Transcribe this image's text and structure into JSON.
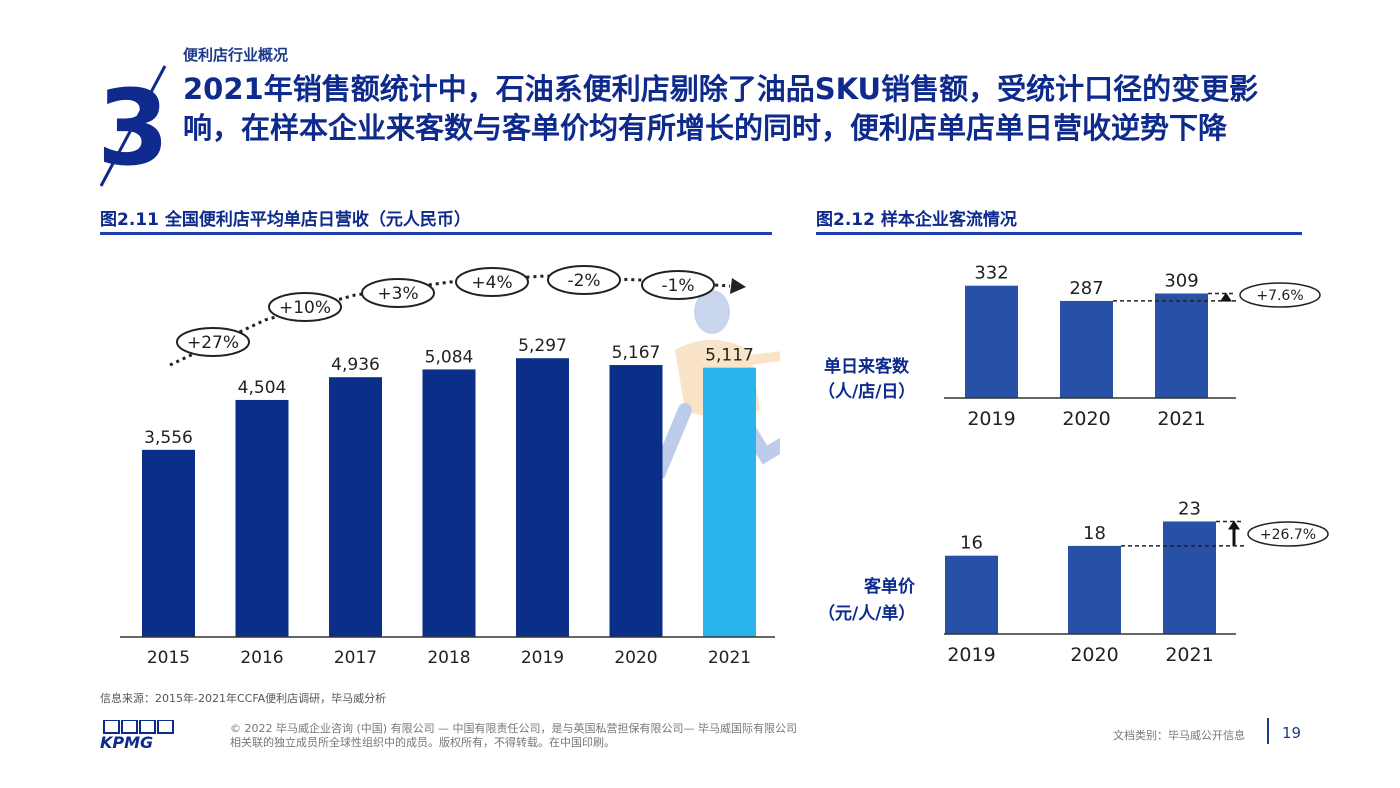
{
  "header": {
    "section_number": "3",
    "section_label": "便利店行业概况",
    "title": "2021年销售额统计中，石油系便利店剔除了油品SKU销售额，受统计口径的变更影响，在样本企业来客数与客单价均有所增长的同时，便利店单店单日营收逆势下降"
  },
  "colors": {
    "navy": "#0d2a8c",
    "bar_dark": "#0b2e88",
    "bar_highlight": "#2ab4ec",
    "bar_mid": "#2850a6",
    "rule": "#1e40af"
  },
  "chart_data": [
    {
      "id": "fig-2-11",
      "type": "bar",
      "title": "图2.11 全国便利店平均单店日营收（元人民币）",
      "categories": [
        "2015",
        "2016",
        "2017",
        "2018",
        "2019",
        "2020",
        "2021"
      ],
      "values": [
        3556,
        4504,
        4936,
        5084,
        5297,
        5167,
        5117
      ],
      "value_labels": [
        "3,556",
        "4,504",
        "4,936",
        "5,084",
        "5,297",
        "5,167",
        "5,117"
      ],
      "highlight_index": 6,
      "growth_labels": [
        "+27%",
        "+10%",
        "+3%",
        "+4%",
        "-2%",
        "-1%"
      ],
      "ylim": [
        0,
        5700
      ]
    },
    {
      "id": "fig-2-12-traffic",
      "type": "bar",
      "title": "图2.12 样本企业客流情况",
      "ylabel_lines": [
        "单日来客数",
        "（人/店/日）"
      ],
      "categories": [
        "2019",
        "2020",
        "2021"
      ],
      "values": [
        332,
        287,
        309
      ],
      "value_labels": [
        "332",
        "287",
        "309"
      ],
      "change_label": "+7.6%",
      "ylim": [
        0,
        340
      ]
    },
    {
      "id": "fig-2-12-ticket",
      "type": "bar",
      "ylabel_lines": [
        "客单价",
        "（元/人/单）"
      ],
      "categories": [
        "2019",
        "2020",
        "2021"
      ],
      "values": [
        16,
        18,
        23
      ],
      "value_labels": [
        "16",
        "18",
        "23"
      ],
      "change_label": "+26.7%",
      "ylim": [
        0,
        23.5
      ]
    }
  ],
  "footer": {
    "source": "信息来源：2015年-2021年CCFA便利店调研，毕马威分析",
    "copyright_line1": "© 2022 毕马威企业咨询 (中国) 有限公司 — 中国有限责任公司，是与英国私营担保有限公司— 毕马威国际有限公司",
    "copyright_line2": "相关联的独立成员所全球性组织中的成员。版权所有，不得转载。在中国印刷。",
    "doc_class": "文档类别：毕马威公开信息",
    "page_number": "19",
    "logo_text": "KPMG"
  }
}
